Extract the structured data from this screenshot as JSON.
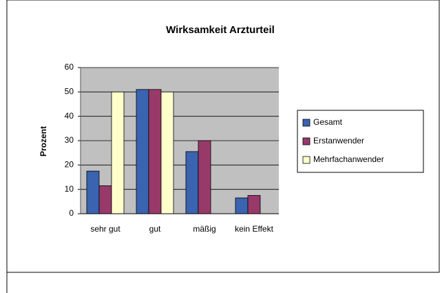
{
  "chart_data": {
    "type": "bar",
    "title": "Wirksamkeit Arzturteil",
    "y_label": "Prozent",
    "categories": [
      "sehr gut",
      "gut",
      "mäßig",
      "kein Effekt"
    ],
    "series": [
      {
        "name": "Gesamt",
        "color": "#3a63b0",
        "values": [
          17.5,
          51,
          25.5,
          6.5
        ]
      },
      {
        "name": "Erstanwender",
        "color": "#973a6a",
        "values": [
          11.5,
          51,
          30,
          7.5
        ]
      },
      {
        "name": "Mehrfachanwender",
        "color": "#ffffcc",
        "values": [
          50,
          50,
          null,
          null
        ]
      }
    ],
    "ylim": [
      0,
      60
    ],
    "yticks": [
      0,
      10,
      20,
      30,
      40,
      50,
      60
    ],
    "grid": true,
    "legend": "right"
  }
}
